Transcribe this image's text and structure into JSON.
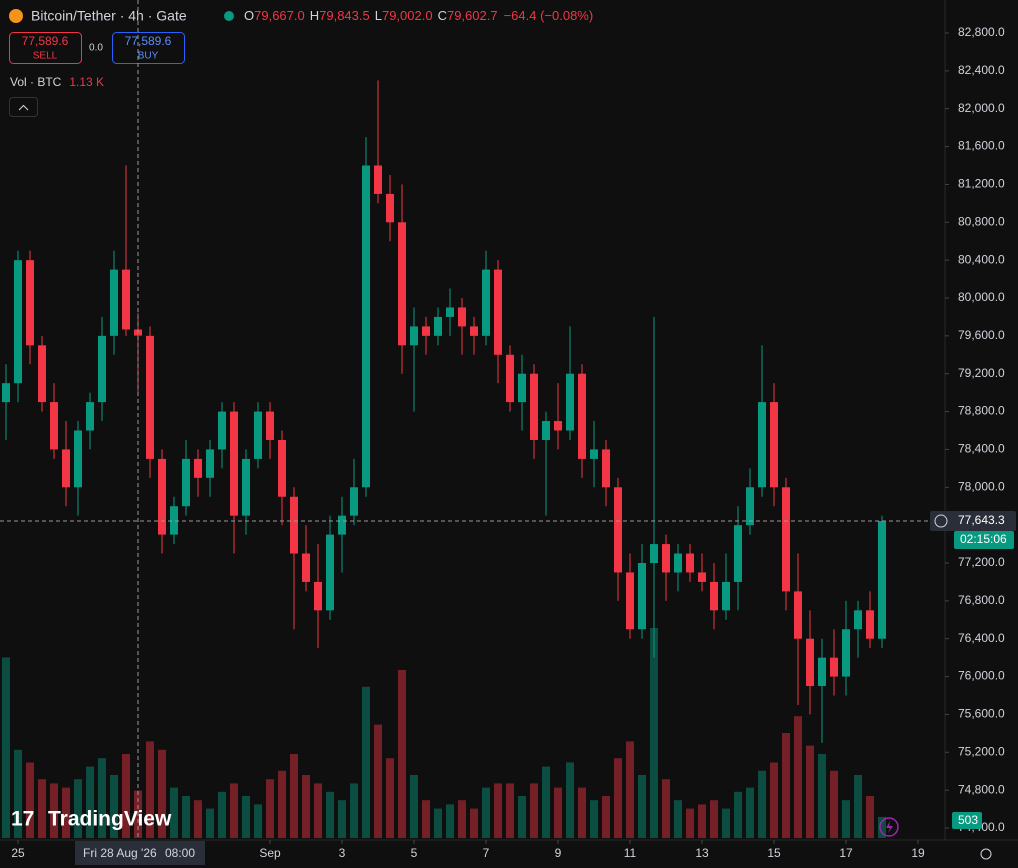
{
  "chart_data": {
    "type": "candlestick",
    "title": "Bitcoin/Tether · 4h · Gate",
    "legend": {
      "open_key": "O",
      "open": "79,667.0",
      "high_key": "H",
      "high": "79,843.5",
      "low_key": "L",
      "low": "79,002.0",
      "close_key": "C",
      "close": "79,602.7",
      "change": "−64.4 (−0.08%)"
    },
    "trade": {
      "sell_price": "77,589.6",
      "sell": "SELL",
      "spread": "0.0",
      "buy_price": "77,589.6",
      "buy": "BUY"
    },
    "watermark": "TradingView",
    "up_color": "#089981",
    "down_color": "#f23645",
    "x": [
      -8,
      0,
      8,
      16,
      24,
      32,
      40,
      48,
      56,
      64,
      72,
      80,
      88,
      96,
      104,
      112,
      120,
      128,
      136,
      144,
      152,
      160,
      168,
      176,
      184,
      192,
      200,
      208,
      216,
      224,
      232,
      240,
      248,
      256,
      264,
      272,
      280,
      288,
      296,
      304,
      312,
      320,
      328,
      336,
      344,
      352,
      360,
      368,
      376,
      384,
      392,
      400,
      408,
      416,
      424,
      432,
      440,
      448,
      456,
      464,
      472,
      480,
      488,
      496,
      504,
      512,
      520,
      528,
      536,
      544,
      552,
      560,
      568,
      576
    ],
    "open": [
      78900,
      79100,
      80400,
      79500,
      78900,
      78400,
      78000,
      78600,
      78900,
      79600,
      80300,
      79667,
      79600,
      78300,
      77500,
      77800,
      78300,
      78100,
      78400,
      78800,
      77700,
      78300,
      78800,
      78500,
      77900,
      77300,
      77000,
      76700,
      77500,
      77700,
      78000,
      81400,
      81100,
      80800,
      79500,
      79700,
      79600,
      79800,
      79900,
      79700,
      79600,
      80300,
      79400,
      78900,
      79200,
      78500,
      78700,
      78600,
      79200,
      78300,
      78400,
      78000,
      77100,
      76500,
      77200,
      77400,
      77100,
      77300,
      77100,
      77000,
      76700,
      77000,
      77600,
      78000,
      78900,
      78000,
      76900,
      76400,
      75900,
      76200,
      76000,
      76500,
      76700,
      76400
    ],
    "high": [
      79300,
      80500,
      80500,
      79600,
      79100,
      78700,
      78700,
      79000,
      79800,
      80500,
      81400,
      79843.5,
      79700,
      78400,
      77900,
      78500,
      78400,
      78500,
      78900,
      78900,
      78400,
      78900,
      78900,
      78600,
      78000,
      77600,
      77400,
      77700,
      77900,
      78300,
      81700,
      82300,
      81300,
      81200,
      79900,
      79800,
      79900,
      80100,
      80000,
      79800,
      80500,
      80400,
      79500,
      79400,
      79300,
      78800,
      79100,
      79700,
      79300,
      78700,
      78500,
      78100,
      77300,
      77400,
      79800,
      77500,
      77400,
      77400,
      77300,
      77200,
      77300,
      77800,
      78200,
      79500,
      79100,
      78100,
      77300,
      76700,
      76400,
      76500,
      76800,
      76800,
      76900,
      77700
    ],
    "low": [
      78500,
      78900,
      79300,
      78800,
      78300,
      77800,
      77700,
      78400,
      78700,
      79400,
      79600,
      79002,
      78100,
      77300,
      77400,
      77700,
      77900,
      77900,
      78200,
      77300,
      77500,
      78200,
      78300,
      77600,
      76500,
      76900,
      76300,
      76600,
      77100,
      77600,
      77900,
      81000,
      80600,
      79200,
      78800,
      79400,
      79500,
      79600,
      79400,
      79400,
      79500,
      79100,
      78800,
      78600,
      78300,
      77700,
      78400,
      78500,
      78100,
      78000,
      77800,
      76800,
      76400,
      76400,
      76200,
      76800,
      76900,
      77000,
      76900,
      76500,
      76600,
      76700,
      77500,
      77900,
      77800,
      76700,
      75700,
      75600,
      75300,
      75800,
      75800,
      76200,
      76300,
      76300
    ],
    "close": [
      79100,
      80400,
      79500,
      78900,
      78400,
      78000,
      78600,
      78900,
      79600,
      80300,
      79667,
      79602.7,
      78300,
      77500,
      77800,
      78300,
      78100,
      78400,
      78800,
      77700,
      78300,
      78800,
      78500,
      77900,
      77300,
      77000,
      76700,
      77500,
      77700,
      78000,
      81400,
      81100,
      80800,
      79500,
      79700,
      79600,
      79800,
      79900,
      79700,
      79600,
      80300,
      79400,
      78900,
      79200,
      78500,
      78700,
      78600,
      79200,
      78300,
      78400,
      78000,
      77100,
      76500,
      77200,
      77400,
      77100,
      77300,
      77100,
      77000,
      76700,
      77000,
      77600,
      78000,
      78900,
      78000,
      76900,
      76400,
      75900,
      76200,
      76000,
      76500,
      76700,
      76400,
      77643.3
    ],
    "volume": {
      "name": "Vol · BTC",
      "values": [
        4300,
        2100,
        1800,
        1400,
        1300,
        1200,
        1400,
        1700,
        1900,
        1500,
        2000,
        1130,
        2300,
        2100,
        1200,
        1000,
        900,
        700,
        1100,
        1300,
        1000,
        800,
        1400,
        1600,
        2000,
        1500,
        1300,
        1100,
        900,
        1300,
        3600,
        2700,
        1900,
        4000,
        1500,
        900,
        700,
        800,
        900,
        700,
        1200,
        1300,
        1300,
        1000,
        1300,
        1700,
        1200,
        1800,
        1200,
        900,
        1000,
        1900,
        2300,
        1500,
        5000,
        1400,
        900,
        700,
        800,
        900,
        700,
        1100,
        1200,
        1600,
        1800,
        2500,
        2900,
        2200,
        2000,
        1600,
        900,
        1500,
        1000,
        503
      ],
      "value_labels": [
        null,
        null,
        null,
        null,
        null,
        null,
        null,
        null,
        null,
        null,
        null,
        "1.13 K",
        null,
        null,
        null,
        null,
        null,
        null,
        null,
        null,
        null,
        null,
        null,
        null,
        null,
        null,
        null,
        null,
        null,
        null,
        null,
        null,
        null,
        null,
        null,
        null,
        null,
        null,
        null,
        null,
        null,
        null,
        null,
        null,
        null,
        null,
        null,
        null,
        null,
        null,
        null,
        null,
        null,
        null,
        null,
        null,
        null,
        null,
        null,
        null,
        null,
        null,
        null,
        null,
        null,
        null,
        null,
        null,
        null,
        null,
        null,
        null,
        null,
        "503"
      ]
    },
    "last_price_label": "77,643.3",
    "countdown": "02:15:06",
    "crosshair_date": "Fri 28 Aug '26",
    "crosshair_time": "08:00",
    "xlim": [
      -12,
      618
    ],
    "ylim": [
      74400,
      82800
    ],
    "xticks": [
      {
        "value": 0,
        "label": "25"
      },
      {
        "value": 168,
        "label": "Sep"
      },
      {
        "value": 216,
        "label": "3"
      },
      {
        "value": 264,
        "label": "5"
      },
      {
        "value": 312,
        "label": "7"
      },
      {
        "value": 360,
        "label": "9"
      },
      {
        "value": 408,
        "label": "11"
      },
      {
        "value": 456,
        "label": "13"
      },
      {
        "value": 504,
        "label": "15"
      },
      {
        "value": 552,
        "label": "17"
      },
      {
        "value": 600,
        "label": "19"
      }
    ],
    "yticks": [
      {
        "value": 82800,
        "label": "82,800.0"
      },
      {
        "value": 82400,
        "label": "82,400.0"
      },
      {
        "value": 82000,
        "label": "82,000.0"
      },
      {
        "value": 81600,
        "label": "81,600.0"
      },
      {
        "value": 81200,
        "label": "81,200.0"
      },
      {
        "value": 80800,
        "label": "80,800.0"
      },
      {
        "value": 80400,
        "label": "80,400.0"
      },
      {
        "value": 80000,
        "label": "80,000.0"
      },
      {
        "value": 79600,
        "label": "79,600.0"
      },
      {
        "value": 79200,
        "label": "79,200.0"
      },
      {
        "value": 78800,
        "label": "78,800.0"
      },
      {
        "value": 78400,
        "label": "78,400.0"
      },
      {
        "value": 78000,
        "label": "78,000.0"
      },
      {
        "value": 77600,
        "label": "77,600.0"
      },
      {
        "value": 77200,
        "label": "77,200.0"
      },
      {
        "value": 76800,
        "label": "76,800.0"
      },
      {
        "value": 76400,
        "label": "76,400.0"
      },
      {
        "value": 76000,
        "label": "76,000.0"
      },
      {
        "value": 75600,
        "label": "75,600.0"
      },
      {
        "value": 75200,
        "label": "75,200.0"
      },
      {
        "value": 74800,
        "label": "74,800.0"
      },
      {
        "value": 74400,
        "label": "74,400.0"
      }
    ],
    "grid": false
  }
}
